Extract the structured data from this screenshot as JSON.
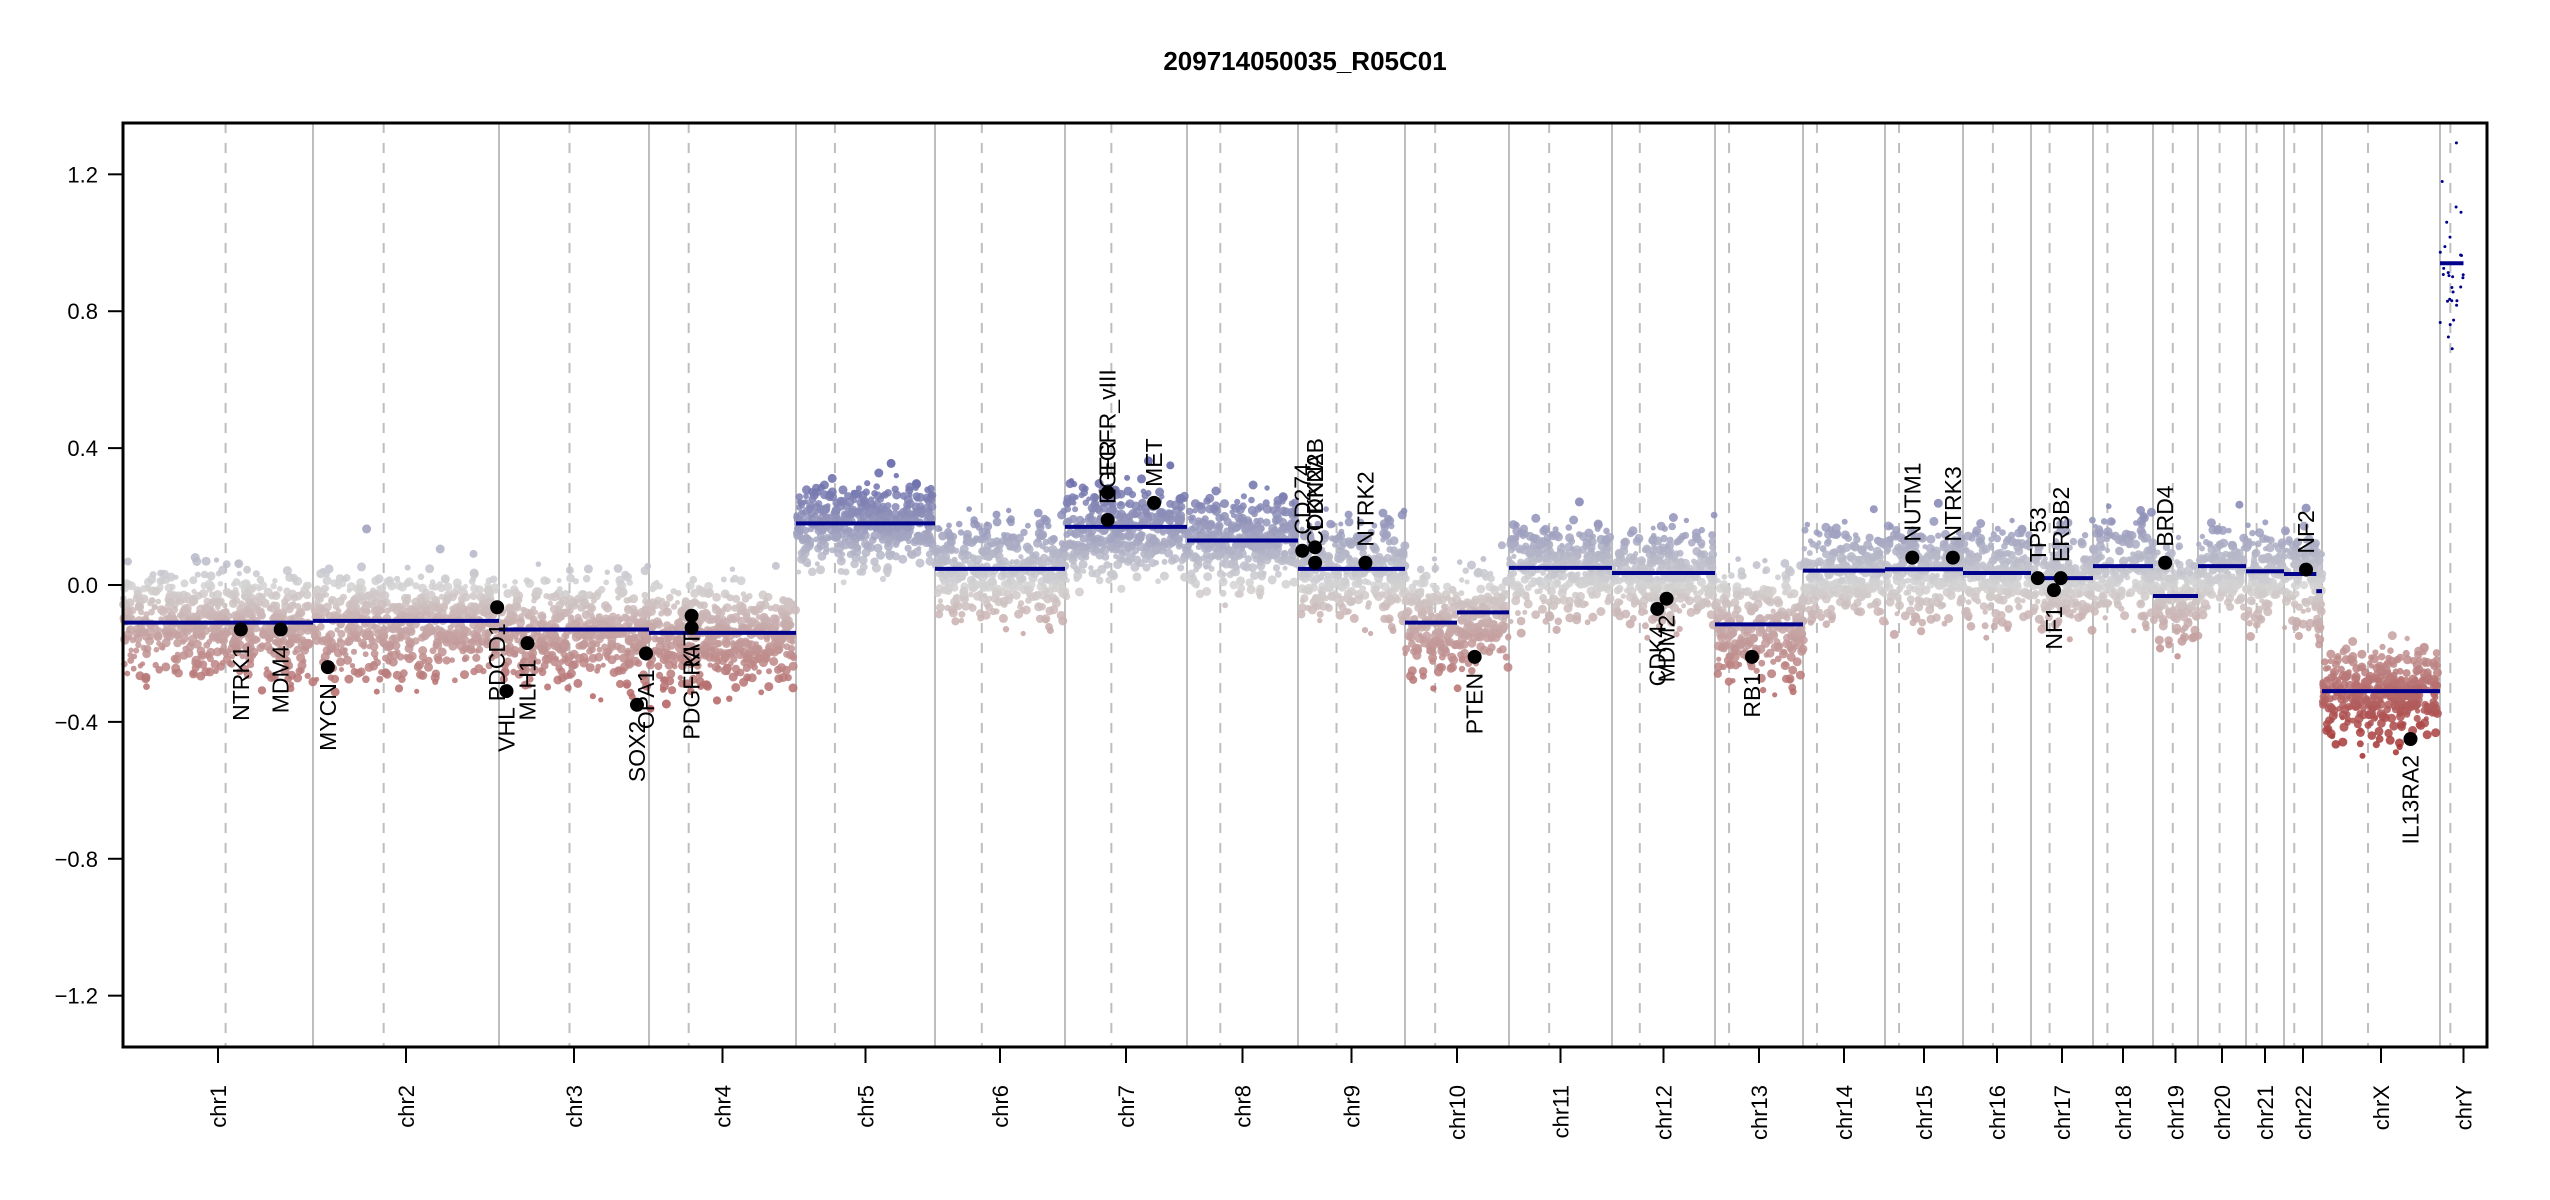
{
  "chart_data": {
    "type": "scatter",
    "title": "209714050035_R05C01",
    "xlabel": "",
    "ylabel": "",
    "ylim": [
      -1.35,
      1.35
    ],
    "yticks": [
      1.2,
      0.8,
      0.4,
      0.0,
      -0.4,
      -0.8,
      -1.2
    ],
    "ytick_labels": [
      "1.2",
      "0.8",
      "0.4",
      "0.0",
      "−0.4",
      "−0.8",
      "−1.2"
    ],
    "grid": "chromosome boundaries (solid grey) and centromeres (dashed grey)",
    "colors": {
      "segment": "#00008b",
      "gain": "#4a4e9e",
      "neutral": "#d3d3d3",
      "loss": "#a32a2a",
      "gene_marker": "#000000",
      "boundary": "#bebebe"
    },
    "chromosomes": [
      {
        "name": "chr1",
        "rel_len": 190,
        "centromere": 0.54
      },
      {
        "name": "chr2",
        "rel_len": 186,
        "centromere": 0.38
      },
      {
        "name": "chr3",
        "rel_len": 150,
        "centromere": 0.47
      },
      {
        "name": "chr4",
        "rel_len": 147,
        "centromere": 0.27
      },
      {
        "name": "chr5",
        "rel_len": 139,
        "centromere": 0.28
      },
      {
        "name": "chr6",
        "rel_len": 130,
        "centromere": 0.36
      },
      {
        "name": "chr7",
        "rel_len": 122,
        "centromere": 0.38
      },
      {
        "name": "chr8",
        "rel_len": 111,
        "centromere": 0.3
      },
      {
        "name": "chr9",
        "rel_len": 107,
        "centromere": 0.36
      },
      {
        "name": "chr10",
        "rel_len": 104,
        "centromere": 0.29
      },
      {
        "name": "chr11",
        "rel_len": 103,
        "centromere": 0.39
      },
      {
        "name": "chr12",
        "rel_len": 103,
        "centromere": 0.27
      },
      {
        "name": "chr13",
        "rel_len": 88,
        "centromere": 0.16
      },
      {
        "name": "chr14",
        "rel_len": 82,
        "centromere": 0.17
      },
      {
        "name": "chr15",
        "rel_len": 78,
        "centromere": 0.18
      },
      {
        "name": "chr16",
        "rel_len": 68,
        "centromere": 0.44
      },
      {
        "name": "chr17",
        "rel_len": 62,
        "centromere": 0.3
      },
      {
        "name": "chr18",
        "rel_len": 60,
        "centromere": 0.24
      },
      {
        "name": "chr19",
        "rel_len": 45,
        "centromere": 0.44
      },
      {
        "name": "chr20",
        "rel_len": 48,
        "centromere": 0.45
      },
      {
        "name": "chr21",
        "rel_len": 38,
        "centromere": 0.28
      },
      {
        "name": "chr22",
        "rel_len": 38,
        "centromere": 0.27
      },
      {
        "name": "chrX",
        "rel_len": 118,
        "centromere": 0.39
      },
      {
        "name": "chrY",
        "rel_len": 47,
        "centromere": 0.22
      }
    ],
    "segments": [
      {
        "chr": "chr1",
        "start": 0.0,
        "end": 1.0,
        "value": -0.11
      },
      {
        "chr": "chr2",
        "start": 0.0,
        "end": 1.0,
        "value": -0.105
      },
      {
        "chr": "chr3",
        "start": 0.0,
        "end": 1.0,
        "value": -0.13
      },
      {
        "chr": "chr4",
        "start": 0.0,
        "end": 1.0,
        "value": -0.14
      },
      {
        "chr": "chr5",
        "start": 0.0,
        "end": 1.0,
        "value": 0.18
      },
      {
        "chr": "chr6",
        "start": 0.0,
        "end": 1.0,
        "value": 0.047
      },
      {
        "chr": "chr7",
        "start": 0.0,
        "end": 1.0,
        "value": 0.17
      },
      {
        "chr": "chr8",
        "start": 0.0,
        "end": 1.0,
        "value": 0.13
      },
      {
        "chr": "chr9",
        "start": 0.0,
        "end": 1.0,
        "value": 0.047
      },
      {
        "chr": "chr10",
        "start": 0.0,
        "end": 0.5,
        "value": -0.11
      },
      {
        "chr": "chr10",
        "start": 0.5,
        "end": 1.0,
        "value": -0.08
      },
      {
        "chr": "chr11",
        "start": 0.0,
        "end": 1.0,
        "value": 0.05
      },
      {
        "chr": "chr12",
        "start": 0.0,
        "end": 1.0,
        "value": 0.035
      },
      {
        "chr": "chr13",
        "start": 0.0,
        "end": 1.0,
        "value": -0.115
      },
      {
        "chr": "chr14",
        "start": 0.0,
        "end": 1.0,
        "value": 0.042
      },
      {
        "chr": "chr15",
        "start": 0.0,
        "end": 1.0,
        "value": 0.046
      },
      {
        "chr": "chr16",
        "start": 0.0,
        "end": 1.0,
        "value": 0.035
      },
      {
        "chr": "chr17",
        "start": 0.0,
        "end": 1.0,
        "value": 0.02
      },
      {
        "chr": "chr18",
        "start": 0.0,
        "end": 1.0,
        "value": 0.055
      },
      {
        "chr": "chr19",
        "start": 0.0,
        "end": 1.0,
        "value": -0.032
      },
      {
        "chr": "chr20",
        "start": 0.0,
        "end": 1.0,
        "value": 0.055
      },
      {
        "chr": "chr21",
        "start": 0.0,
        "end": 1.0,
        "value": 0.04
      },
      {
        "chr": "chr22",
        "start": 0.0,
        "end": 0.85,
        "value": 0.032
      },
      {
        "chr": "chr22",
        "start": 0.85,
        "end": 1.0,
        "value": -0.018
      },
      {
        "chr": "chrX",
        "start": 0.0,
        "end": 1.0,
        "value": -0.31
      },
      {
        "chr": "chrY",
        "start": 0.0,
        "end": 0.5,
        "value": 0.94
      }
    ],
    "probe_spread": {
      "chr1": 0.12,
      "chr2": 0.12,
      "chr3": 0.12,
      "chr4": 0.12,
      "chr5": 0.1,
      "chr6": 0.11,
      "chr7": 0.11,
      "chr8": 0.11,
      "chr9": 0.11,
      "chr10": 0.12,
      "chr11": 0.11,
      "chr12": 0.11,
      "chr13": 0.12,
      "chr14": 0.11,
      "chr15": 0.11,
      "chr16": 0.11,
      "chr17": 0.11,
      "chr18": 0.11,
      "chr19": 0.11,
      "chr20": 0.11,
      "chr21": 0.11,
      "chr22": 0.11,
      "chrX": 0.11,
      "chrY": 0.15
    },
    "genes": [
      {
        "name": "NTRK1",
        "chr": "chr1",
        "pos": 0.62,
        "value": -0.13,
        "label_side": "below"
      },
      {
        "name": "MDM4",
        "chr": "chr1",
        "pos": 0.83,
        "value": -0.13,
        "label_side": "below"
      },
      {
        "name": "MYCN",
        "chr": "chr2",
        "pos": 0.08,
        "value": -0.24,
        "label_side": "below"
      },
      {
        "name": "PDCD1",
        "chr": "chr2",
        "pos": 0.99,
        "value": -0.065,
        "label_side": "below"
      },
      {
        "name": "VHL",
        "chr": "chr3",
        "pos": 0.05,
        "value": -0.31,
        "label_side": "below"
      },
      {
        "name": "MLH1",
        "chr": "chr3",
        "pos": 0.19,
        "value": -0.17,
        "label_side": "below"
      },
      {
        "name": "SOX2",
        "chr": "chr3",
        "pos": 0.92,
        "value": -0.35,
        "label_side": "below"
      },
      {
        "name": "OPA1",
        "chr": "chr3",
        "pos": 0.98,
        "value": -0.2,
        "label_side": "below"
      },
      {
        "name": "PDGFRA",
        "chr": "chr4",
        "pos": 0.29,
        "value": -0.125,
        "label_side": "below"
      },
      {
        "name": "KIT",
        "chr": "chr4",
        "pos": 0.29,
        "value": -0.09,
        "label_side": "below"
      },
      {
        "name": "EGFR",
        "chr": "chr7",
        "pos": 0.35,
        "value": 0.19,
        "label_side": "above"
      },
      {
        "name": "EGFR_vIII",
        "chr": "chr7",
        "pos": 0.35,
        "value": 0.27,
        "label_side": "above"
      },
      {
        "name": "MET",
        "chr": "chr7",
        "pos": 0.73,
        "value": 0.24,
        "label_side": "above"
      },
      {
        "name": "CD274",
        "chr": "chr9",
        "pos": 0.04,
        "value": 0.1,
        "label_side": "above"
      },
      {
        "name": "CDKN2A",
        "chr": "chr9",
        "pos": 0.16,
        "value": 0.065,
        "label_side": "above"
      },
      {
        "name": "CDKN2B",
        "chr": "chr9",
        "pos": 0.16,
        "value": 0.11,
        "label_side": "above"
      },
      {
        "name": "NTRK2",
        "chr": "chr9",
        "pos": 0.63,
        "value": 0.065,
        "label_side": "above"
      },
      {
        "name": "PTEN",
        "chr": "chr10",
        "pos": 0.67,
        "value": -0.21,
        "label_side": "below"
      },
      {
        "name": "CDK4",
        "chr": "chr12",
        "pos": 0.44,
        "value": -0.07,
        "label_side": "below"
      },
      {
        "name": "MDM2",
        "chr": "chr12",
        "pos": 0.53,
        "value": -0.04,
        "label_side": "below"
      },
      {
        "name": "RB1",
        "chr": "chr13",
        "pos": 0.42,
        "value": -0.21,
        "label_side": "below"
      },
      {
        "name": "NUTM1",
        "chr": "chr15",
        "pos": 0.35,
        "value": 0.08,
        "label_side": "above"
      },
      {
        "name": "NTRK3",
        "chr": "chr15",
        "pos": 0.87,
        "value": 0.08,
        "label_side": "above"
      },
      {
        "name": "TP53",
        "chr": "chr17",
        "pos": 0.11,
        "value": 0.02,
        "label_side": "above"
      },
      {
        "name": "NF1",
        "chr": "chr17",
        "pos": 0.37,
        "value": -0.015,
        "label_side": "below"
      },
      {
        "name": "ERBB2",
        "chr": "chr17",
        "pos": 0.48,
        "value": 0.02,
        "label_side": "above"
      },
      {
        "name": "BRD4",
        "chr": "chr19",
        "pos": 0.27,
        "value": 0.065,
        "label_side": "above"
      },
      {
        "name": "NF2",
        "chr": "chr22",
        "pos": 0.58,
        "value": 0.045,
        "label_side": "above"
      },
      {
        "name": "IL13RA2",
        "chr": "chrX",
        "pos": 0.75,
        "value": -0.45,
        "label_side": "below"
      }
    ]
  }
}
